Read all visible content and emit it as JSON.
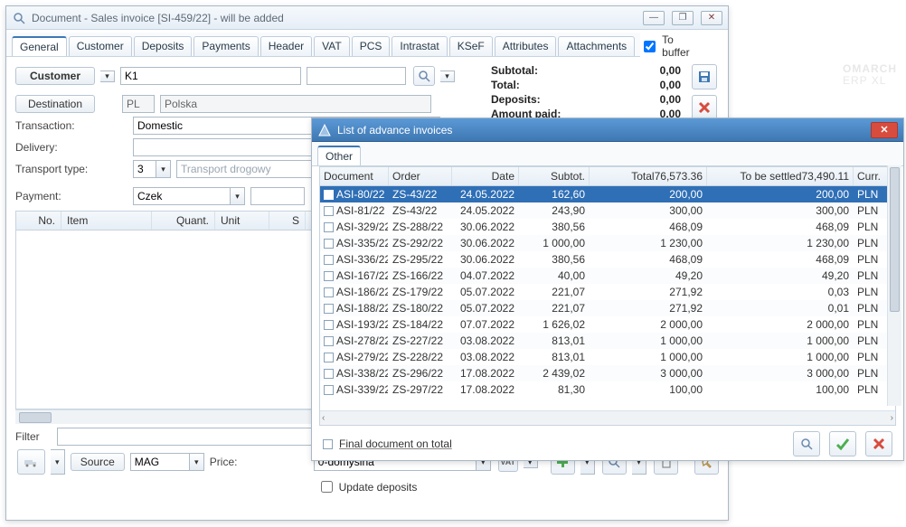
{
  "brand": {
    "l1": "OMARCH",
    "l2": "ERP XL"
  },
  "mainWin": {
    "title": "Document - Sales invoice [SI-459/22]  - will be added",
    "windowButtons": [
      "—",
      "❐",
      "✕"
    ],
    "tabs": [
      "General",
      "Customer",
      "Deposits",
      "Payments",
      "Header",
      "VAT",
      "PCS",
      "Intrastat",
      "KSeF",
      "Attributes",
      "Attachments"
    ],
    "toBuffer": "To buffer",
    "toBufferChecked": true,
    "fields": {
      "customerBtn": "Customer",
      "customerVal": "K1",
      "destinationBtn": "Destination",
      "destCode": "PL",
      "destName": "Polska",
      "transactionLbl": "Transaction:",
      "transactionVal": "Domestic",
      "deliveryLbl": "Delivery:",
      "transportLbl": "Transport type:",
      "transportNum": "3",
      "transportTxt": "Transport drogowy",
      "paymentLbl": "Payment:",
      "paymentVal": "Czek"
    },
    "totals": [
      {
        "k": "Subtotal:",
        "v": "0,00"
      },
      {
        "k": "Total:",
        "v": "0,00"
      },
      {
        "k": "Deposits:",
        "v": "0,00"
      },
      {
        "k": "Amount paid:",
        "v": "0,00"
      }
    ],
    "gridCols": [
      "No.",
      "Item",
      "Quant.",
      "Unit",
      "S"
    ],
    "filterLbl": "Filter",
    "sourceLbl": "Source",
    "sourceVal": "MAG",
    "priceLbl": "Price:",
    "priceVal": "0-domyślna",
    "updateDeposits": "Update deposits"
  },
  "dialog": {
    "title": "List of advance invoices",
    "tab": "Other",
    "colHead": {
      "doc": "Document",
      "ord": "Order",
      "date": "Date",
      "sub": "Subtot.",
      "totL": "Total",
      "totV": "76,573.36",
      "setL": "To be settled",
      "setV": "73,490.11",
      "cur": "Curr."
    },
    "rows": [
      {
        "doc": "ASI-80/22",
        "ord": "ZS-43/22",
        "date": "24.05.2022",
        "sub": "162,60",
        "tot": "200,00",
        "set": "200,00",
        "cur": "PLN",
        "sel": true
      },
      {
        "doc": "ASI-81/22",
        "ord": "ZS-43/22",
        "date": "24.05.2022",
        "sub": "243,90",
        "tot": "300,00",
        "set": "300,00",
        "cur": "PLN"
      },
      {
        "doc": "ASI-329/22",
        "ord": "ZS-288/22",
        "date": "30.06.2022",
        "sub": "380,56",
        "tot": "468,09",
        "set": "468,09",
        "cur": "PLN"
      },
      {
        "doc": "ASI-335/22",
        "ord": "ZS-292/22",
        "date": "30.06.2022",
        "sub": "1 000,00",
        "tot": "1 230,00",
        "set": "1 230,00",
        "cur": "PLN"
      },
      {
        "doc": "ASI-336/22",
        "ord": "ZS-295/22",
        "date": "30.06.2022",
        "sub": "380,56",
        "tot": "468,09",
        "set": "468,09",
        "cur": "PLN"
      },
      {
        "doc": "ASI-167/22",
        "ord": "ZS-166/22",
        "date": "04.07.2022",
        "sub": "40,00",
        "tot": "49,20",
        "set": "49,20",
        "cur": "PLN"
      },
      {
        "doc": "ASI-186/22",
        "ord": "ZS-179/22",
        "date": "05.07.2022",
        "sub": "221,07",
        "tot": "271,92",
        "set": "0,03",
        "cur": "PLN"
      },
      {
        "doc": "ASI-188/22",
        "ord": "ZS-180/22",
        "date": "05.07.2022",
        "sub": "221,07",
        "tot": "271,92",
        "set": "0,01",
        "cur": "PLN"
      },
      {
        "doc": "ASI-193/22",
        "ord": "ZS-184/22",
        "date": "07.07.2022",
        "sub": "1 626,02",
        "tot": "2 000,00",
        "set": "2 000,00",
        "cur": "PLN"
      },
      {
        "doc": "ASI-278/22",
        "ord": "ZS-227/22",
        "date": "03.08.2022",
        "sub": "813,01",
        "tot": "1 000,00",
        "set": "1 000,00",
        "cur": "PLN"
      },
      {
        "doc": "ASI-279/22",
        "ord": "ZS-228/22",
        "date": "03.08.2022",
        "sub": "813,01",
        "tot": "1 000,00",
        "set": "1 000,00",
        "cur": "PLN"
      },
      {
        "doc": "ASI-338/22",
        "ord": "ZS-296/22",
        "date": "17.08.2022",
        "sub": "2 439,02",
        "tot": "3 000,00",
        "set": "3 000,00",
        "cur": "PLN"
      },
      {
        "doc": "ASI-339/22",
        "ord": "ZS-297/22",
        "date": "17.08.2022",
        "sub": "81,30",
        "tot": "100,00",
        "set": "100,00",
        "cur": "PLN"
      }
    ],
    "finalDoc": "Final document on total"
  },
  "colors": {
    "accent": "#3e78b3",
    "selRow": "#2f6fb6",
    "danger": "#d84c3e",
    "ok": "#4caf50"
  }
}
